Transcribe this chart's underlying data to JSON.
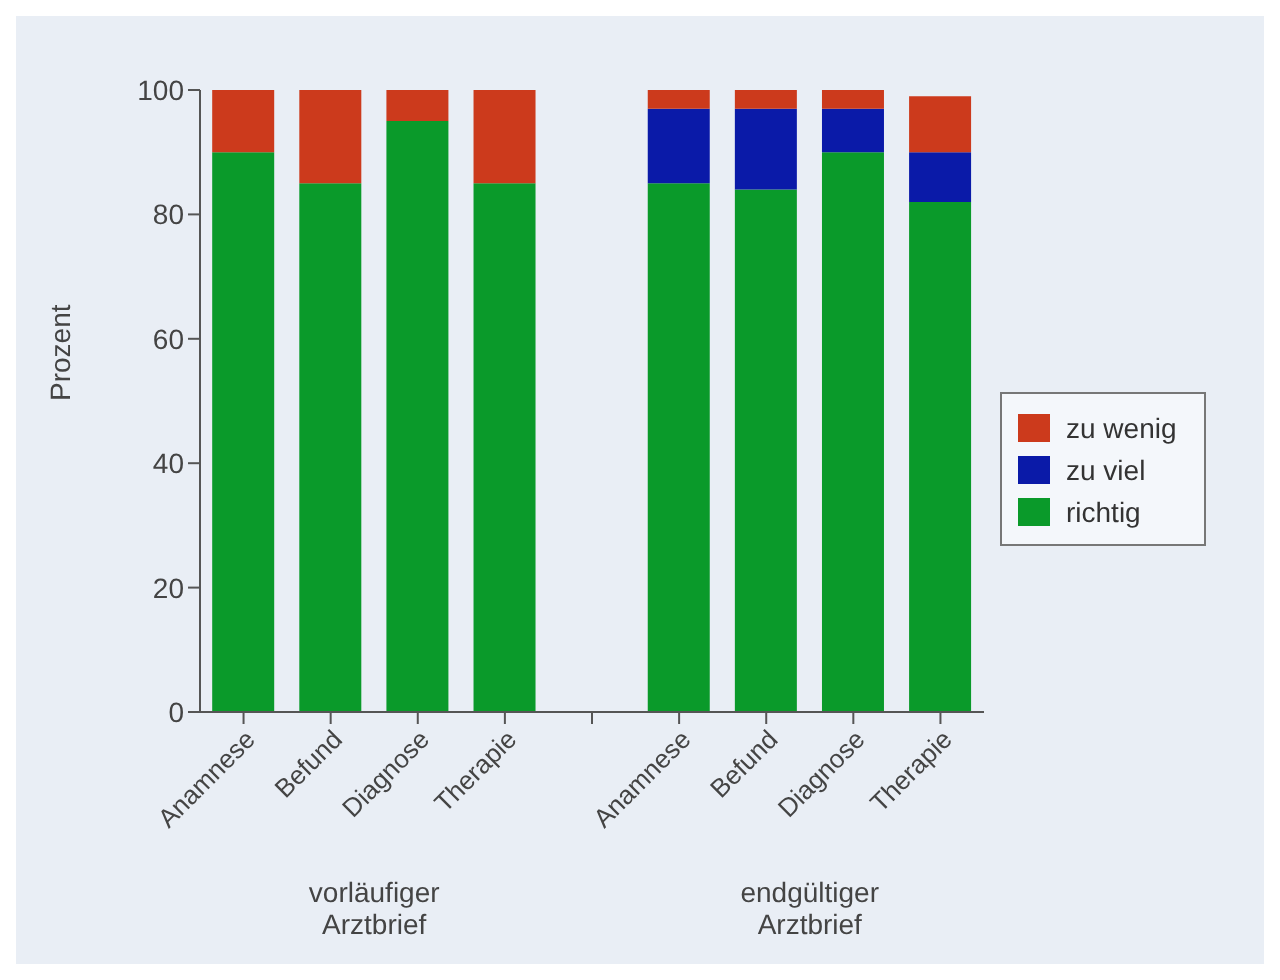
{
  "chart_data": {
    "type": "bar",
    "stacked": true,
    "ylabel": "Prozent",
    "categories": [
      "Anamnese",
      "Befund",
      "Diagnose",
      "Therapie",
      null,
      "Anamnese",
      "Befund",
      "Diagnose",
      "Therapie"
    ],
    "ylim": [
      0,
      100
    ],
    "yticks": [
      0,
      20,
      40,
      60,
      80,
      100
    ],
    "legend": "right",
    "annotations": [
      "vorläufiger Arztbrief",
      "endgültiger Arztbrief"
    ],
    "series": [
      {
        "name": "richtig",
        "color": "#0a9a2a",
        "values": [
          90,
          85,
          95,
          85,
          null,
          85,
          84,
          90,
          82
        ]
      },
      {
        "name": "zu viel",
        "color": "#0a1aa8",
        "values": [
          null,
          null,
          null,
          null,
          null,
          12,
          13,
          7,
          8
        ]
      },
      {
        "name": "zu wenig",
        "color": "#cc3a1c",
        "values": [
          10,
          15,
          5,
          15,
          null,
          3,
          3,
          3,
          9
        ]
      }
    ]
  }
}
